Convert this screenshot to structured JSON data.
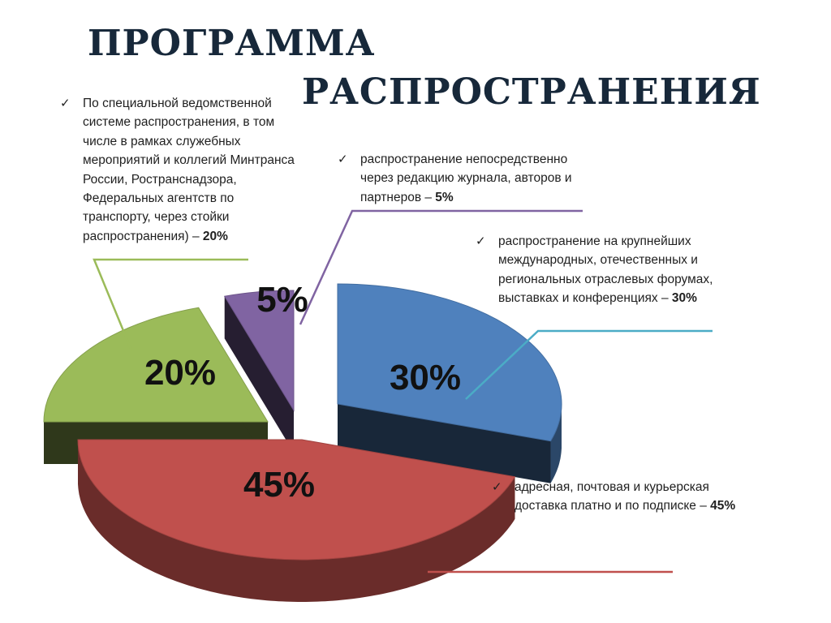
{
  "title": {
    "line1": "ПРОГРАММА",
    "line2": "РАСПРОСТРАНЕНИЯ"
  },
  "chart_data": {
    "type": "pie",
    "style": "3d-exploded",
    "categories": [
      "По специальной ведомственной системе распространения, в том числе в рамках служебных мероприятий и коллегий Минтранса России, Ространснадзора, Федеральных агентств по транспорту, через стойки распространения)",
      "распространение непосредственно через редакцию журнала, авторов и партнеров",
      "распространение на крупнейших международных, отечественных и региональных отраслевых форумах, выставках и конференциях",
      "адресная, почтовая и курьерская доставка платно и по подписке"
    ],
    "values": [
      20,
      5,
      30,
      45
    ],
    "labels": [
      "20%",
      "5%",
      "30%",
      "45%"
    ],
    "colors": [
      "#9bbb59",
      "#8064a2",
      "#4f81bd",
      "#c0504d"
    ]
  },
  "notes": [
    {
      "text": "По специальной ведомственной системе распространения, в том числе в рамках служебных мероприятий и коллегий Минтранса России, Ространснадзора, Федеральных агентств по транспорту, через стойки распространения) – ",
      "pct": "20%"
    },
    {
      "text": "распространение непосредственно через редакцию журнала, авторов и партнеров – ",
      "pct": "5%"
    },
    {
      "text": "распространение на крупнейших международных, отечественных и региональных отраслевых форумах, выставках и конференциях – ",
      "pct": "30%"
    },
    {
      "text": "адресная, почтовая и курьерская доставка платно и по подписке – ",
      "pct": "45%"
    }
  ],
  "check_icon": "✓"
}
